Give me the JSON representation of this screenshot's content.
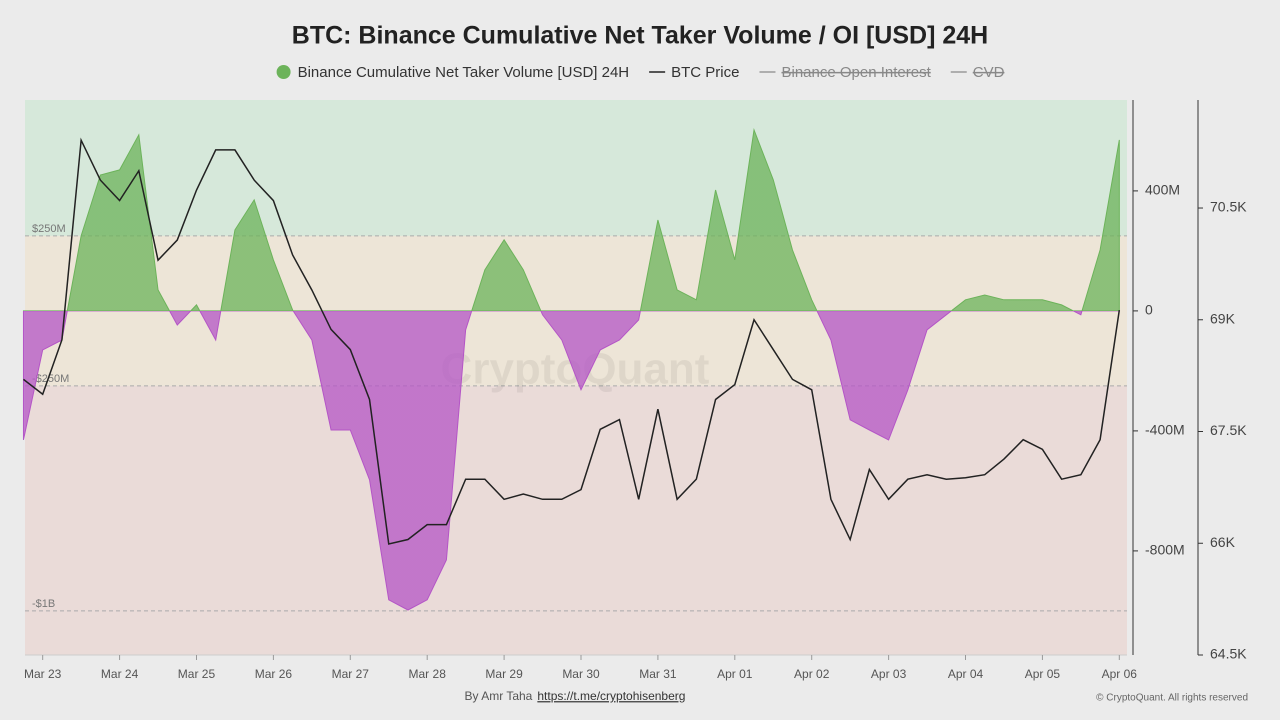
{
  "chart_data": {
    "type": "area_line",
    "title": "BTC: Binance Cumulative Net Taker Volume / OI [USD] 24H",
    "watermark": "CryptoQuant",
    "credit": "By Amr Taha",
    "credit_link": "https://t.me/cryptohisenberg",
    "copyright": "© CryptoQuant. All rights reserved",
    "x": [
      -0.25,
      0,
      0.25,
      0.5,
      0.75,
      1,
      1.25,
      1.5,
      1.75,
      2,
      2.25,
      2.5,
      2.75,
      3,
      3.25,
      3.5,
      3.75,
      4,
      4.25,
      4.5,
      4.75,
      5,
      5.25,
      5.5,
      5.75,
      6,
      6.25,
      6.5,
      6.75,
      7,
      7.25,
      7.5,
      7.75,
      8,
      8.25,
      8.5,
      8.75,
      9,
      9.25,
      9.5,
      9.75,
      10,
      10.25,
      10.5,
      10.75,
      11,
      11.25,
      11.5,
      11.75,
      12,
      12.25,
      12.5,
      12.75,
      13,
      13.25,
      13.5,
      13.75,
      14
    ],
    "xlim": [
      -0.23,
      14.1
    ],
    "xticks": [
      {
        "value": 0,
        "label": "Mar 23"
      },
      {
        "value": 1,
        "label": "Mar 24"
      },
      {
        "value": 2,
        "label": "Mar 25"
      },
      {
        "value": 3,
        "label": "Mar 26"
      },
      {
        "value": 4,
        "label": "Mar 27"
      },
      {
        "value": 5,
        "label": "Mar 28"
      },
      {
        "value": 6,
        "label": "Mar 29"
      },
      {
        "value": 7,
        "label": "Mar 30"
      },
      {
        "value": 8,
        "label": "Mar 31"
      },
      {
        "value": 9,
        "label": "Apr 01"
      },
      {
        "value": 10,
        "label": "Apr 02"
      },
      {
        "value": 11,
        "label": "Apr 03"
      },
      {
        "value": 12,
        "label": "Apr 04"
      },
      {
        "value": 13,
        "label": "Apr 05"
      },
      {
        "value": 14,
        "label": "Apr 06"
      }
    ],
    "ylim": [
      -1147,
      703
    ],
    "yticks": [
      {
        "value": 400,
        "label": "400M"
      },
      0,
      {
        "value": -400,
        "label": "-400M"
      },
      {
        "value": -800,
        "label": "-800M"
      }
    ],
    "y2lim": [
      64500,
      71950
    ],
    "y2ticks": [
      {
        "value": 70500,
        "label": "70.5K"
      },
      {
        "value": 69000,
        "label": "69K"
      },
      {
        "value": 67500,
        "label": "67.5K"
      },
      {
        "value": 66000,
        "label": "66K"
      },
      {
        "value": 64500,
        "label": "64.5K"
      }
    ],
    "reference_lines": [
      {
        "value": 250,
        "label": "$250M"
      },
      {
        "value": -250,
        "label": "-$250M"
      },
      {
        "value": -1000,
        "label": "-$1B"
      }
    ],
    "zone_colors": [
      "#d6e8da",
      "#ede5d7",
      "#eadbd8"
    ],
    "series": [
      {
        "name": "Binance Cumulative Net Taker Volume [USD] 24H",
        "color": "#6cb35a",
        "negative_color": "#b455c6",
        "marker": "dot",
        "values": [
          -430,
          -130,
          -97,
          250,
          453,
          470,
          587,
          70,
          -47,
          20,
          -97,
          270,
          370,
          170,
          3,
          -97,
          -397,
          -397,
          -563,
          -963,
          -997,
          -963,
          -830,
          -63,
          137,
          237,
          137,
          -13,
          -97,
          -263,
          -130,
          -97,
          -30,
          303,
          70,
          37,
          403,
          170,
          603,
          437,
          203,
          37,
          -97,
          -363,
          -397,
          -430,
          -263,
          -63,
          -13,
          37,
          53,
          37,
          37,
          37,
          20,
          -13,
          203,
          570
        ]
      },
      {
        "name": "BTC Price",
        "color": "#222222",
        "axis": "y2",
        "marker": "line",
        "values": [
          68200,
          68000,
          68730,
          71410,
          70875,
          70600,
          71000,
          69800,
          70070,
          70740,
          71280,
          71280,
          70875,
          70600,
          69870,
          69400,
          68870,
          68600,
          67930,
          65990,
          66050,
          66250,
          66250,
          66860,
          66860,
          66590,
          66660,
          66590,
          66590,
          66720,
          67530,
          67660,
          66590,
          67800,
          66590,
          66860,
          67930,
          68130,
          69000,
          68600,
          68200,
          68060,
          66590,
          66050,
          66990,
          66590,
          66860,
          66920,
          66860,
          66880,
          66920,
          67130,
          67390,
          67260,
          66860,
          66920,
          67390,
          69130
        ]
      },
      {
        "name": "Binance Open Interest",
        "color": "#999999",
        "marker": "line",
        "hidden": true
      },
      {
        "name": "CVD",
        "color": "#999999",
        "marker": "line",
        "hidden": true
      }
    ]
  }
}
